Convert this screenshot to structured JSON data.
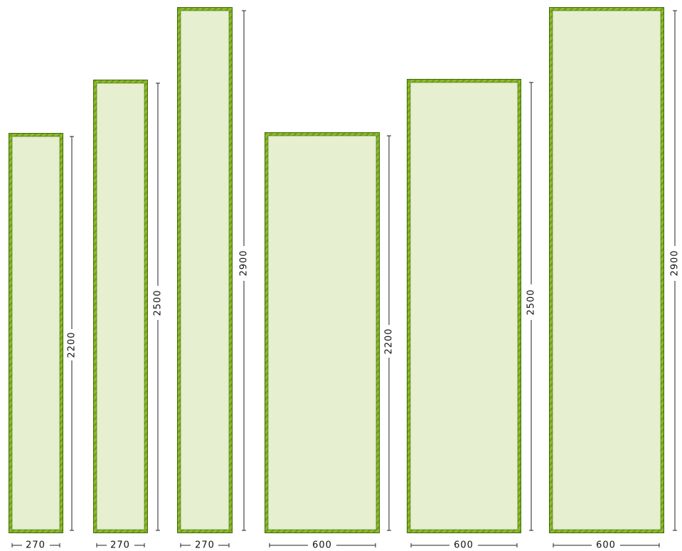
{
  "colors": {
    "frame_outer": "#3f6b0a",
    "frame_green": "#8dbb2a",
    "frame_stripe": "#6e9a1a",
    "fill": "#e6efcf",
    "dimension_line": "#222222"
  },
  "panels": [
    {
      "width_label": "270",
      "height_label": "2200"
    },
    {
      "width_label": "270",
      "height_label": "2500"
    },
    {
      "width_label": "270",
      "height_label": "2900"
    },
    {
      "width_label": "600",
      "height_label": "2200"
    },
    {
      "width_label": "600",
      "height_label": "2500"
    },
    {
      "width_label": "600",
      "height_label": "2900"
    }
  ]
}
